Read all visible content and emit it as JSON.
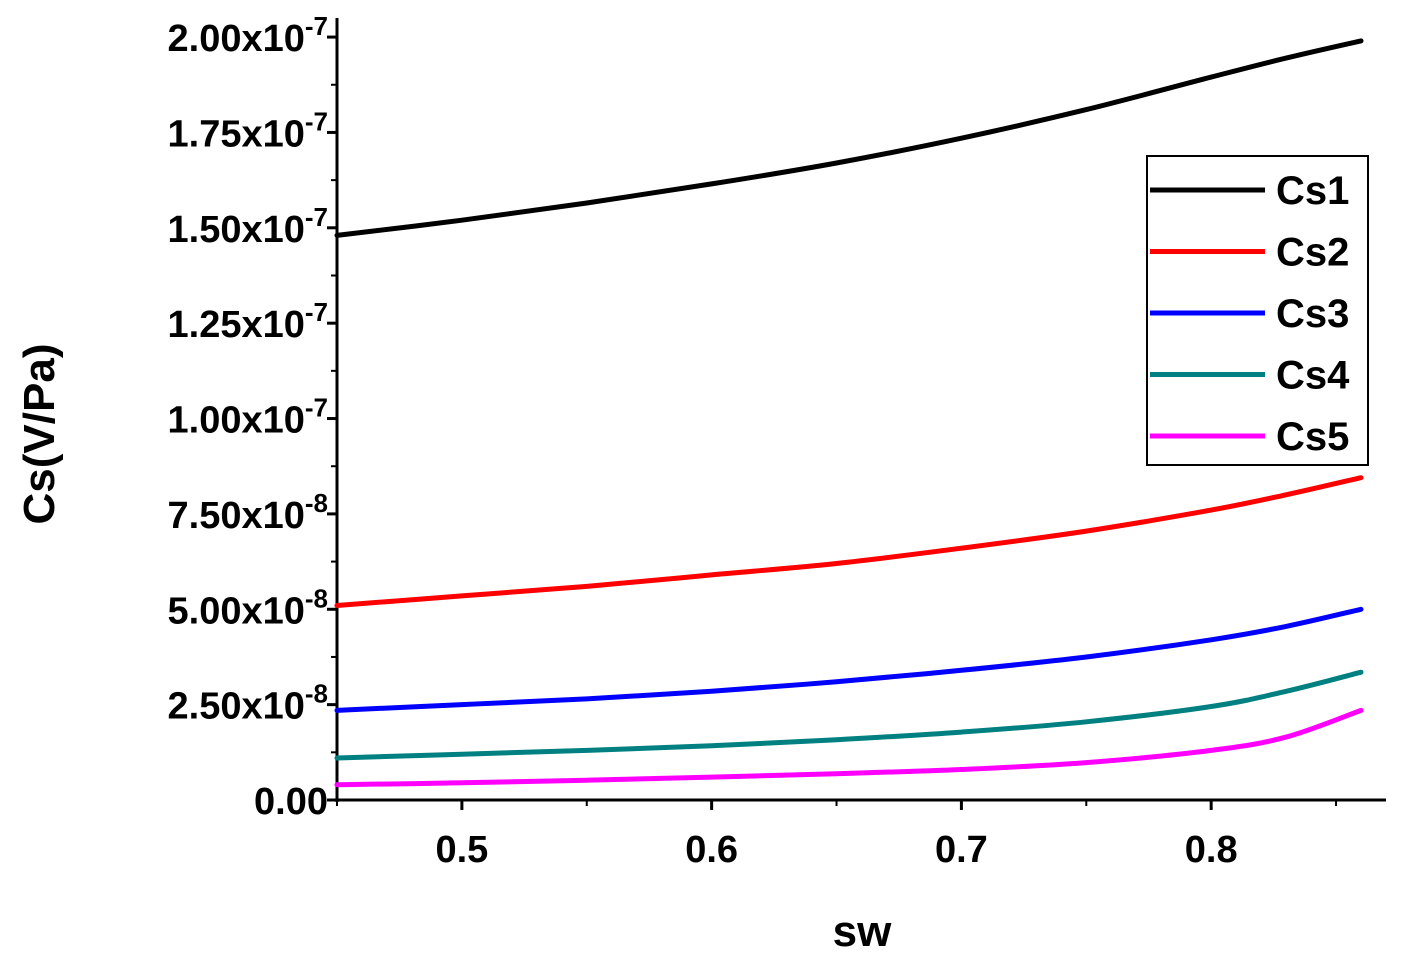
{
  "chart_data": {
    "type": "line",
    "xlabel": "sw",
    "ylabel": "Cs(V/Pa)",
    "xlim": [
      0.45,
      0.87
    ],
    "ylim": [
      0.0,
      2.05e-07
    ],
    "x_ticks": [
      {
        "value": 0.5,
        "label": "0.5"
      },
      {
        "value": 0.6,
        "label": "0.6"
      },
      {
        "value": 0.7,
        "label": "0.7"
      },
      {
        "value": 0.8,
        "label": "0.8"
      }
    ],
    "y_ticks": [
      {
        "value": 0.0,
        "label": "0.00",
        "exp": ""
      },
      {
        "value": 2.5e-08,
        "label": "2.50x10",
        "exp": "-8"
      },
      {
        "value": 5e-08,
        "label": "5.00x10",
        "exp": "-8"
      },
      {
        "value": 7.5e-08,
        "label": "7.50x10",
        "exp": "-8"
      },
      {
        "value": 1e-07,
        "label": "1.00x10",
        "exp": "-7"
      },
      {
        "value": 1.25e-07,
        "label": "1.25x10",
        "exp": "-7"
      },
      {
        "value": 1.5e-07,
        "label": "1.50x10",
        "exp": "-7"
      },
      {
        "value": 1.75e-07,
        "label": "1.75x10",
        "exp": "-7"
      },
      {
        "value": 2e-07,
        "label": "2.00x10",
        "exp": "-7"
      }
    ],
    "x": [
      0.45,
      0.5,
      0.55,
      0.6,
      0.65,
      0.7,
      0.75,
      0.8,
      0.83,
      0.86
    ],
    "series": [
      {
        "name": "Cs1",
        "color": "#000000",
        "values": [
          1.48e-07,
          1.52e-07,
          1.565e-07,
          1.615e-07,
          1.67e-07,
          1.735e-07,
          1.81e-07,
          1.895e-07,
          1.945e-07,
          1.99e-07
        ]
      },
      {
        "name": "Cs2",
        "color": "#ff0000",
        "values": [
          5.1e-08,
          5.35e-08,
          5.6e-08,
          5.9e-08,
          6.2e-08,
          6.6e-08,
          7.05e-08,
          7.6e-08,
          8e-08,
          8.45e-08
        ]
      },
      {
        "name": "Cs3",
        "color": "#0000ff",
        "values": [
          2.35e-08,
          2.5e-08,
          2.65e-08,
          2.85e-08,
          3.1e-08,
          3.4e-08,
          3.75e-08,
          4.2e-08,
          4.55e-08,
          5e-08
        ]
      },
      {
        "name": "Cs4",
        "color": "#008080",
        "values": [
          1.1e-08,
          1.2e-08,
          1.3e-08,
          1.42e-08,
          1.58e-08,
          1.78e-08,
          2.05e-08,
          2.45e-08,
          2.85e-08,
          3.35e-08
        ]
      },
      {
        "name": "Cs5",
        "color": "#ff00ff",
        "values": [
          4e-09,
          4.5e-09,
          5.2e-09,
          6e-09,
          6.9e-09,
          8e-09,
          9.8e-09,
          1.3e-08,
          1.65e-08,
          2.35e-08
        ]
      }
    ],
    "legend_position": "right",
    "grid": false
  }
}
